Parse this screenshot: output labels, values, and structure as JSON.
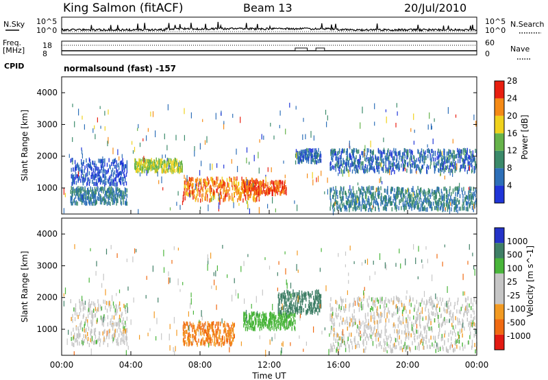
{
  "header": {
    "station": "King Salmon (fitACF)",
    "beam": "Beam 13",
    "date": "20/Jul/2010"
  },
  "noise_panel": {
    "left_label": "N.Sky",
    "right_label": "N.Search",
    "left_ticks": [
      "10^5",
      "10^0"
    ],
    "right_ticks": [
      "10^5",
      "10^0"
    ]
  },
  "freq_panel": {
    "left_label_1": "Freq.",
    "left_label_2": "[MHz]",
    "left_ticks": [
      "18",
      "8"
    ],
    "right_label": "Nave",
    "right_ticks": [
      "60",
      "0"
    ],
    "cpid_label": "CPID",
    "program": "normalsound (fast) -157"
  },
  "power_panel": {
    "ylabel": "Slant Range [km]",
    "yticks": [
      "1000",
      "2000",
      "3000",
      "4000"
    ],
    "colorbar_label": "Power [dB]",
    "colorbar_ticks": [
      "4",
      "8",
      "12",
      "16",
      "20",
      "24",
      "28"
    ],
    "colorbar_colors": [
      "#1f35d8",
      "#2d6fb8",
      "#3b8a6a",
      "#66b34a",
      "#f0d21c",
      "#f58a15",
      "#e81e10"
    ]
  },
  "velocity_panel": {
    "ylabel": "Slant Range [km]",
    "yticks": [
      "1000",
      "2000",
      "3000",
      "4000"
    ],
    "colorbar_label": "Velocity [m s^-1]",
    "colorbar_ticks": [
      "1000",
      "500",
      "100",
      "25",
      "-25",
      "-100",
      "-500",
      "-1000"
    ],
    "colorbar_colors": [
      "#2433c8",
      "#3f7f66",
      "#49b53a",
      "#c6c6c6",
      "#c6c6c6",
      "#f29a22",
      "#f06a12",
      "#e21a12"
    ]
  },
  "xaxis": {
    "label": "Time UT",
    "ticks": [
      "00:00",
      "04:00",
      "08:00",
      "12:00",
      "16:00",
      "20:00",
      "00:00"
    ]
  },
  "chart_data": {
    "type": "heatmap",
    "title": "King Salmon (fitACF)",
    "x_range_hours": [
      0,
      24
    ],
    "y_range_km": [
      180,
      4500
    ],
    "grid": false,
    "power_regions_dB": [
      {
        "t": [
          0.5,
          3.8
        ],
        "r": [
          1100,
          1900
        ],
        "value": 6
      },
      {
        "t": [
          0.5,
          3.8
        ],
        "r": [
          500,
          1000
        ],
        "value": 10
      },
      {
        "t": [
          4.2,
          7.0
        ],
        "r": [
          1500,
          1900
        ],
        "value": 18
      },
      {
        "t": [
          7.0,
          11.5
        ],
        "r": [
          600,
          1300
        ],
        "value": 24
      },
      {
        "t": [
          10.5,
          13.0
        ],
        "r": [
          800,
          1200
        ],
        "value": 26
      },
      {
        "t": [
          13.5,
          15.0
        ],
        "r": [
          1800,
          2200
        ],
        "value": 8
      },
      {
        "t": [
          15.5,
          24.0
        ],
        "r": [
          1500,
          2200
        ],
        "value": 8
      },
      {
        "t": [
          15.5,
          24.0
        ],
        "r": [
          300,
          1000
        ],
        "value": 10
      }
    ],
    "velocity_regions_ms": [
      {
        "t": [
          0.5,
          3.8
        ],
        "r": [
          500,
          1900
        ],
        "value": 0
      },
      {
        "t": [
          7.0,
          10.0
        ],
        "r": [
          500,
          1200
        ],
        "value": -300
      },
      {
        "t": [
          10.5,
          13.5
        ],
        "r": [
          1000,
          1500
        ],
        "value": 150
      },
      {
        "t": [
          12.5,
          15.0
        ],
        "r": [
          1500,
          2200
        ],
        "value": 600
      },
      {
        "t": [
          15.5,
          24.0
        ],
        "r": [
          300,
          2000
        ],
        "value": 0
      }
    ]
  }
}
